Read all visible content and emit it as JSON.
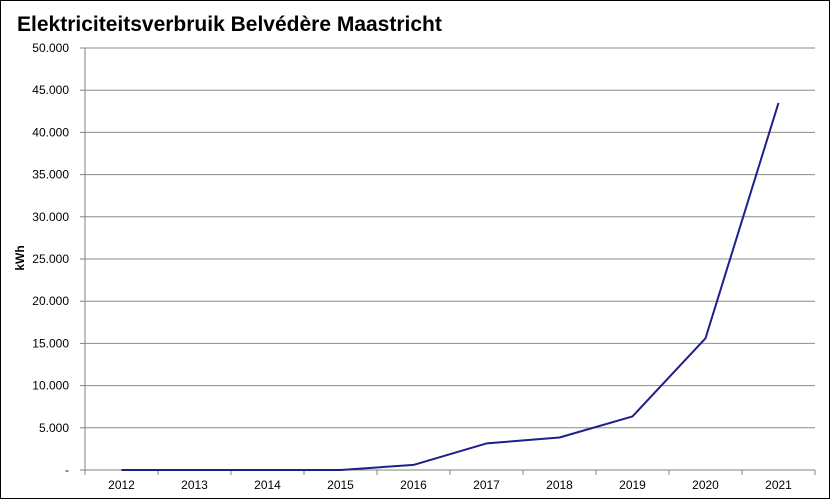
{
  "chart_data": {
    "type": "line",
    "title": "Elektriciteitsverbruik Belvédère Maastricht",
    "xlabel": "",
    "ylabel": "kWh",
    "categories": [
      "2012",
      "2013",
      "2014",
      "2015",
      "2016",
      "2017",
      "2018",
      "2019",
      "2020",
      "2021"
    ],
    "series": [
      {
        "values": [
          0,
          0,
          0,
          0,
          600,
          3150,
          3850,
          6350,
          15600,
          43500
        ],
        "color": "#1f1f8c"
      }
    ],
    "ylim": [
      0,
      50000
    ],
    "y_ticks": [
      0,
      5000,
      10000,
      15000,
      20000,
      25000,
      30000,
      35000,
      40000,
      45000,
      50000
    ],
    "y_tick_labels": [
      "-",
      "5.000",
      "10.000",
      "15.000",
      "20.000",
      "25.000",
      "30.000",
      "35.000",
      "40.000",
      "45.000",
      "50.000"
    ],
    "grid": true,
    "legend": "none"
  }
}
